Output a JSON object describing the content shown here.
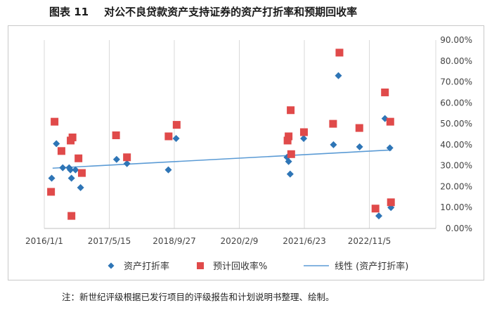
{
  "figure": {
    "number": "图表 11",
    "title": "对公不良贷款资产支持证券的资产打折率和预期回收率"
  },
  "note": "注：新世纪评级根据已发行项目的评级报告和计划说明书整理、绘制。",
  "chart_data": {
    "type": "scatter",
    "title": "",
    "xlabel": "",
    "ylabel": "",
    "x_ticks": [
      "2016/1/1",
      "2017/5/15",
      "2018/9/27",
      "2020/2/9",
      "2021/6/23",
      "2022/11/5"
    ],
    "x_range": [
      "2016/1/1",
      "2023/6/1"
    ],
    "y_ticks": [
      "0.00%",
      "10.00%",
      "20.00%",
      "30.00%",
      "40.00%",
      "50.00%",
      "60.00%",
      "70.00%",
      "80.00%",
      "90.00%"
    ],
    "ylim": [
      0,
      90
    ],
    "y_axis_position": "right",
    "grid": "vertical",
    "legend_position": "bottom",
    "series": [
      {
        "name": "资产打折率",
        "marker": "diamond",
        "color": "#2e75b6",
        "points": [
          {
            "x": "2016/2/27",
            "y": 24
          },
          {
            "x": "2016/4/3",
            "y": 40.5
          },
          {
            "x": "2016/5/22",
            "y": 29
          },
          {
            "x": "2016/7/10",
            "y": 29
          },
          {
            "x": "2016/7/20",
            "y": 28
          },
          {
            "x": "2016/7/28",
            "y": 24
          },
          {
            "x": "2016/8/28",
            "y": 28
          },
          {
            "x": "2016/10/6",
            "y": 19.5
          },
          {
            "x": "2017/7/10",
            "y": 33
          },
          {
            "x": "2017/9/28",
            "y": 31
          },
          {
            "x": "2018/8/12",
            "y": 28
          },
          {
            "x": "2018/10/11",
            "y": 43
          },
          {
            "x": "2021/2/10",
            "y": 34
          },
          {
            "x": "2021/2/22",
            "y": 32
          },
          {
            "x": "2021/3/6",
            "y": 26
          },
          {
            "x": "2021/6/18",
            "y": 43
          },
          {
            "x": "2022/2/2",
            "y": 40
          },
          {
            "x": "2022/3/12",
            "y": 73
          },
          {
            "x": "2022/8/22",
            "y": 39
          },
          {
            "x": "2023/1/17",
            "y": 6
          },
          {
            "x": "2023/3/5",
            "y": 52.5
          },
          {
            "x": "2023/4/12",
            "y": 38.5
          },
          {
            "x": "2023/4/20",
            "y": 10
          }
        ]
      },
      {
        "name": "预计回收率%",
        "marker": "square",
        "color": "#e04a4a",
        "points": [
          {
            "x": "2016/2/22",
            "y": 17.5
          },
          {
            "x": "2016/3/20",
            "y": 51
          },
          {
            "x": "2016/5/12",
            "y": 37
          },
          {
            "x": "2016/7/22",
            "y": 42
          },
          {
            "x": "2016/8/5",
            "y": 43.5
          },
          {
            "x": "2016/7/28",
            "y": 6
          },
          {
            "x": "2016/9/20",
            "y": 33.5
          },
          {
            "x": "2016/10/16",
            "y": 26.5
          },
          {
            "x": "2017/7/6",
            "y": 44.5
          },
          {
            "x": "2017/9/28",
            "y": 34
          },
          {
            "x": "2018/8/14",
            "y": 44
          },
          {
            "x": "2018/10/15",
            "y": 49.5
          },
          {
            "x": "2021/2/14",
            "y": 42
          },
          {
            "x": "2021/2/22",
            "y": 44
          },
          {
            "x": "2021/3/10",
            "y": 56.5
          },
          {
            "x": "2021/3/14",
            "y": 35.5
          },
          {
            "x": "2021/6/20",
            "y": 46
          },
          {
            "x": "2022/1/30",
            "y": 50
          },
          {
            "x": "2022/3/20",
            "y": 84
          },
          {
            "x": "2022/8/20",
            "y": 48
          },
          {
            "x": "2022/12/22",
            "y": 9.5
          },
          {
            "x": "2023/3/5",
            "y": 65
          },
          {
            "x": "2023/4/15",
            "y": 51
          },
          {
            "x": "2023/4/20",
            "y": 12.5
          }
        ]
      },
      {
        "name": "线性 (资产打折率)",
        "type": "trendline",
        "color": "#5b9bd5",
        "points": [
          {
            "x": "2016/3/5",
            "y": 28.8
          },
          {
            "x": "2023/4/25",
            "y": 37.5
          }
        ]
      }
    ]
  }
}
